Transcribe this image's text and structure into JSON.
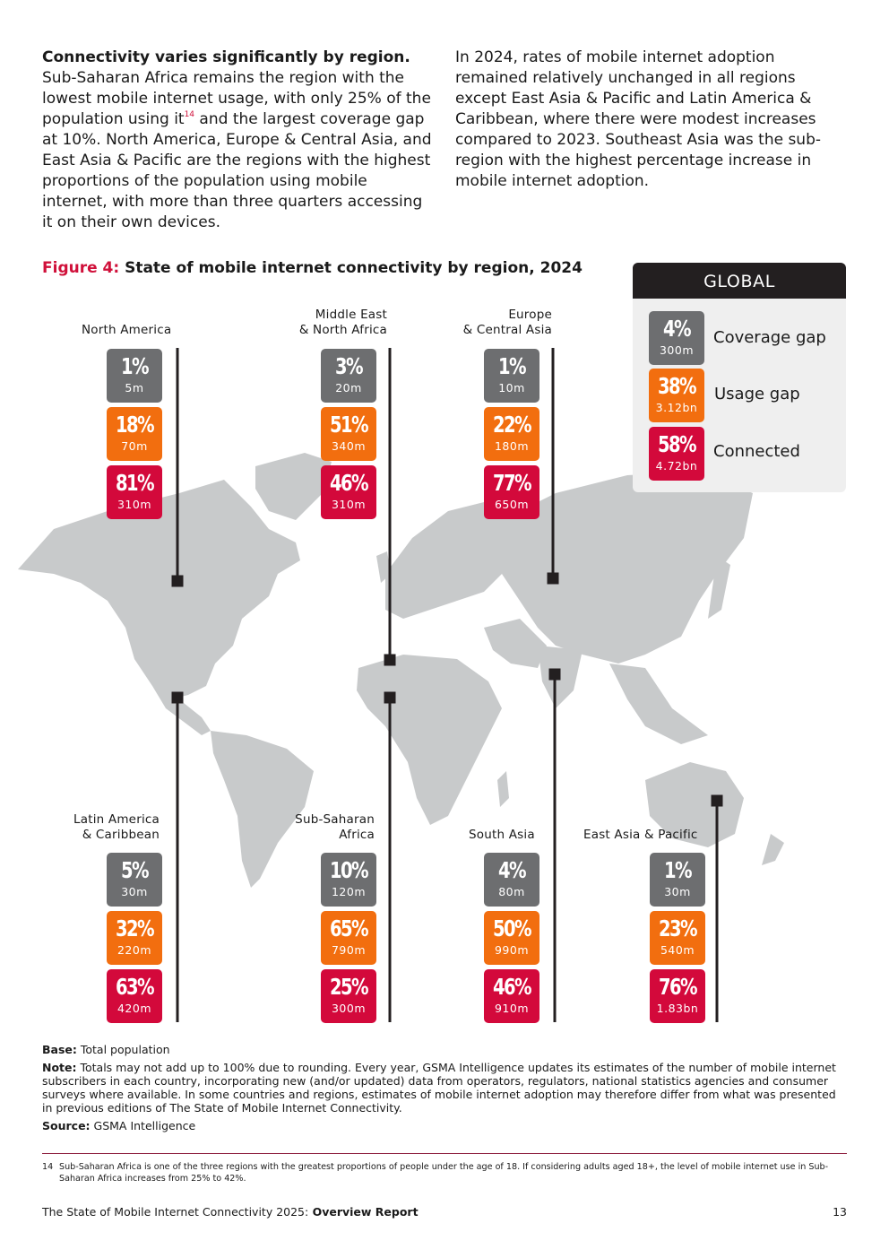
{
  "intro": {
    "left_heading": "Connectivity varies significantly by region.",
    "left_body_1": "Sub-Saharan Africa remains the region with the lowest mobile internet usage, with only 25% of the population using it",
    "left_ref": "14",
    "left_body_2": " and the largest coverage gap at 10%. North America, Europe & Central Asia, and East Asia & Pacific are the regions with the highest proportions of the population using mobile internet, with more than three quarters accessing it on their own devices.",
    "right_body": "In 2024, rates of mobile internet adoption remained relatively unchanged in all regions except East Asia & Pacific and Latin America & Caribbean, where there were modest increases compared to 2023. Southeast Asia was the sub-region with the highest percentage increase in mobile internet adoption."
  },
  "figure": {
    "number": "Figure 4:",
    "title": "State of mobile internet connectivity by region, 2024",
    "global": {
      "title": "GLOBAL",
      "coverage": {
        "label": "Coverage gap",
        "pct": "4%",
        "count": "300m"
      },
      "usage": {
        "label": "Usage gap",
        "pct": "38%",
        "count": "3.12bn"
      },
      "connected": {
        "label": "Connected",
        "pct": "58%",
        "count": "4.72bn"
      }
    },
    "colors": {
      "coverage": "#6d6e70",
      "usage": "#f26e0f",
      "connected": "#d3093b",
      "map": "#c8cacb",
      "global_header": "#231f20"
    },
    "regions": [
      {
        "name_1": "North America",
        "name_2": "",
        "coverage_pct": "1%",
        "coverage_count": "5m",
        "usage_pct": "18%",
        "usage_count": "70m",
        "connected_pct": "81%",
        "connected_count": "310m"
      },
      {
        "name_1": "Middle East",
        "name_2": "& North Africa",
        "coverage_pct": "3%",
        "coverage_count": "20m",
        "usage_pct": "51%",
        "usage_count": "340m",
        "connected_pct": "46%",
        "connected_count": "310m"
      },
      {
        "name_1": "Europe",
        "name_2": "& Central Asia",
        "coverage_pct": "1%",
        "coverage_count": "10m",
        "usage_pct": "22%",
        "usage_count": "180m",
        "connected_pct": "77%",
        "connected_count": "650m"
      },
      {
        "name_1": "Latin America",
        "name_2": "& Caribbean",
        "coverage_pct": "5%",
        "coverage_count": "30m",
        "usage_pct": "32%",
        "usage_count": "220m",
        "connected_pct": "63%",
        "connected_count": "420m"
      },
      {
        "name_1": "Sub-Saharan",
        "name_2": "Africa",
        "coverage_pct": "10%",
        "coverage_count": "120m",
        "usage_pct": "65%",
        "usage_count": "790m",
        "connected_pct": "25%",
        "connected_count": "300m"
      },
      {
        "name_1": "South Asia",
        "name_2": "",
        "coverage_pct": "4%",
        "coverage_count": "80m",
        "usage_pct": "50%",
        "usage_count": "990m",
        "connected_pct": "46%",
        "connected_count": "910m"
      },
      {
        "name_1": "East Asia & Pacific",
        "name_2": "",
        "coverage_pct": "1%",
        "coverage_count": "30m",
        "usage_pct": "23%",
        "usage_count": "540m",
        "connected_pct": "76%",
        "connected_count": "1.83bn"
      }
    ]
  },
  "notes": {
    "base_label": "Base:",
    "base_text": " Total population",
    "note_label": "Note:",
    "note_text": " Totals may not add up to 100% due to rounding. Every year, GSMA Intelligence updates its estimates of the number of mobile internet subscribers in each country, incorporating new (and/or updated) data from operators, regulators, national statistics agencies and consumer surveys where available. In some countries and regions, estimates of mobile internet adoption may therefore differ from what was presented in previous editions of The State of Mobile Internet Connectivity.",
    "source_label": "Source:",
    "source_text": " GSMA Intelligence"
  },
  "footnote": {
    "number": "14",
    "text": "Sub-Saharan Africa is one of the three regions with the greatest proportions of people under the age of 18. If considering adults aged 18+, the level of mobile internet use in Sub-Saharan Africa increases from 25% to 42%."
  },
  "footer": {
    "report_title": "The State of Mobile Internet Connectivity 2025:",
    "report_subtitle": " Overview Report",
    "page_number": "13"
  }
}
